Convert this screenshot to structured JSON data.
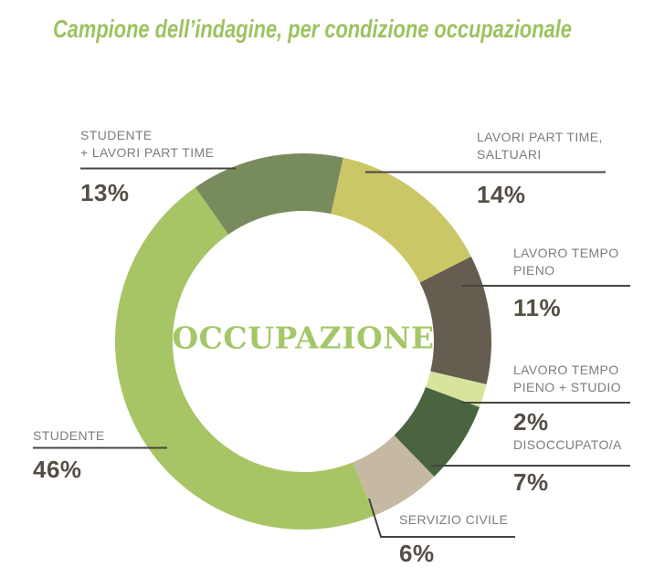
{
  "title": "Campione dell’indagine, per condizione occupazionale",
  "center_label": "OCCUPAZIONE",
  "colors": {
    "title_text": "#9cc35f",
    "center_text": "#a4c768",
    "label_text": "#7c7d80",
    "pct_text": "#544e44",
    "leader_line": "#454540"
  },
  "chart_data": {
    "type": "pie",
    "donut": true,
    "title": "Campione dell’indagine, per condizione occupazionale",
    "center_text": "OCCUPAZIONE",
    "start_angle_deg": -35,
    "direction": "clockwise",
    "legend_position": "around",
    "segments": [
      {
        "label": "STUDENTE\n+ LAVORI PART TIME",
        "value": 13,
        "pct_label": "13%",
        "color": "#788b5d"
      },
      {
        "label": "LAVORI PART TIME,\nSALTUARI",
        "value": 14,
        "pct_label": "14%",
        "color": "#cbc766"
      },
      {
        "label": "LAVORO TEMPO\nPIENO",
        "value": 11,
        "pct_label": "11%",
        "color": "#655d50"
      },
      {
        "label": "LAVORO TEMPO\nPIENO + STUDIO",
        "value": 2,
        "pct_label": "2%",
        "color": "#d7e59c"
      },
      {
        "label": "DISOCCUPATO/A",
        "value": 7,
        "pct_label": "7%",
        "color": "#49643e"
      },
      {
        "label": "SERVIZIO CIVILE",
        "value": 6,
        "pct_label": "6%",
        "color": "#c6b9a3"
      },
      {
        "label": "STUDENTE",
        "value": 46,
        "pct_label": "46%",
        "color": "#a8c565"
      }
    ]
  }
}
